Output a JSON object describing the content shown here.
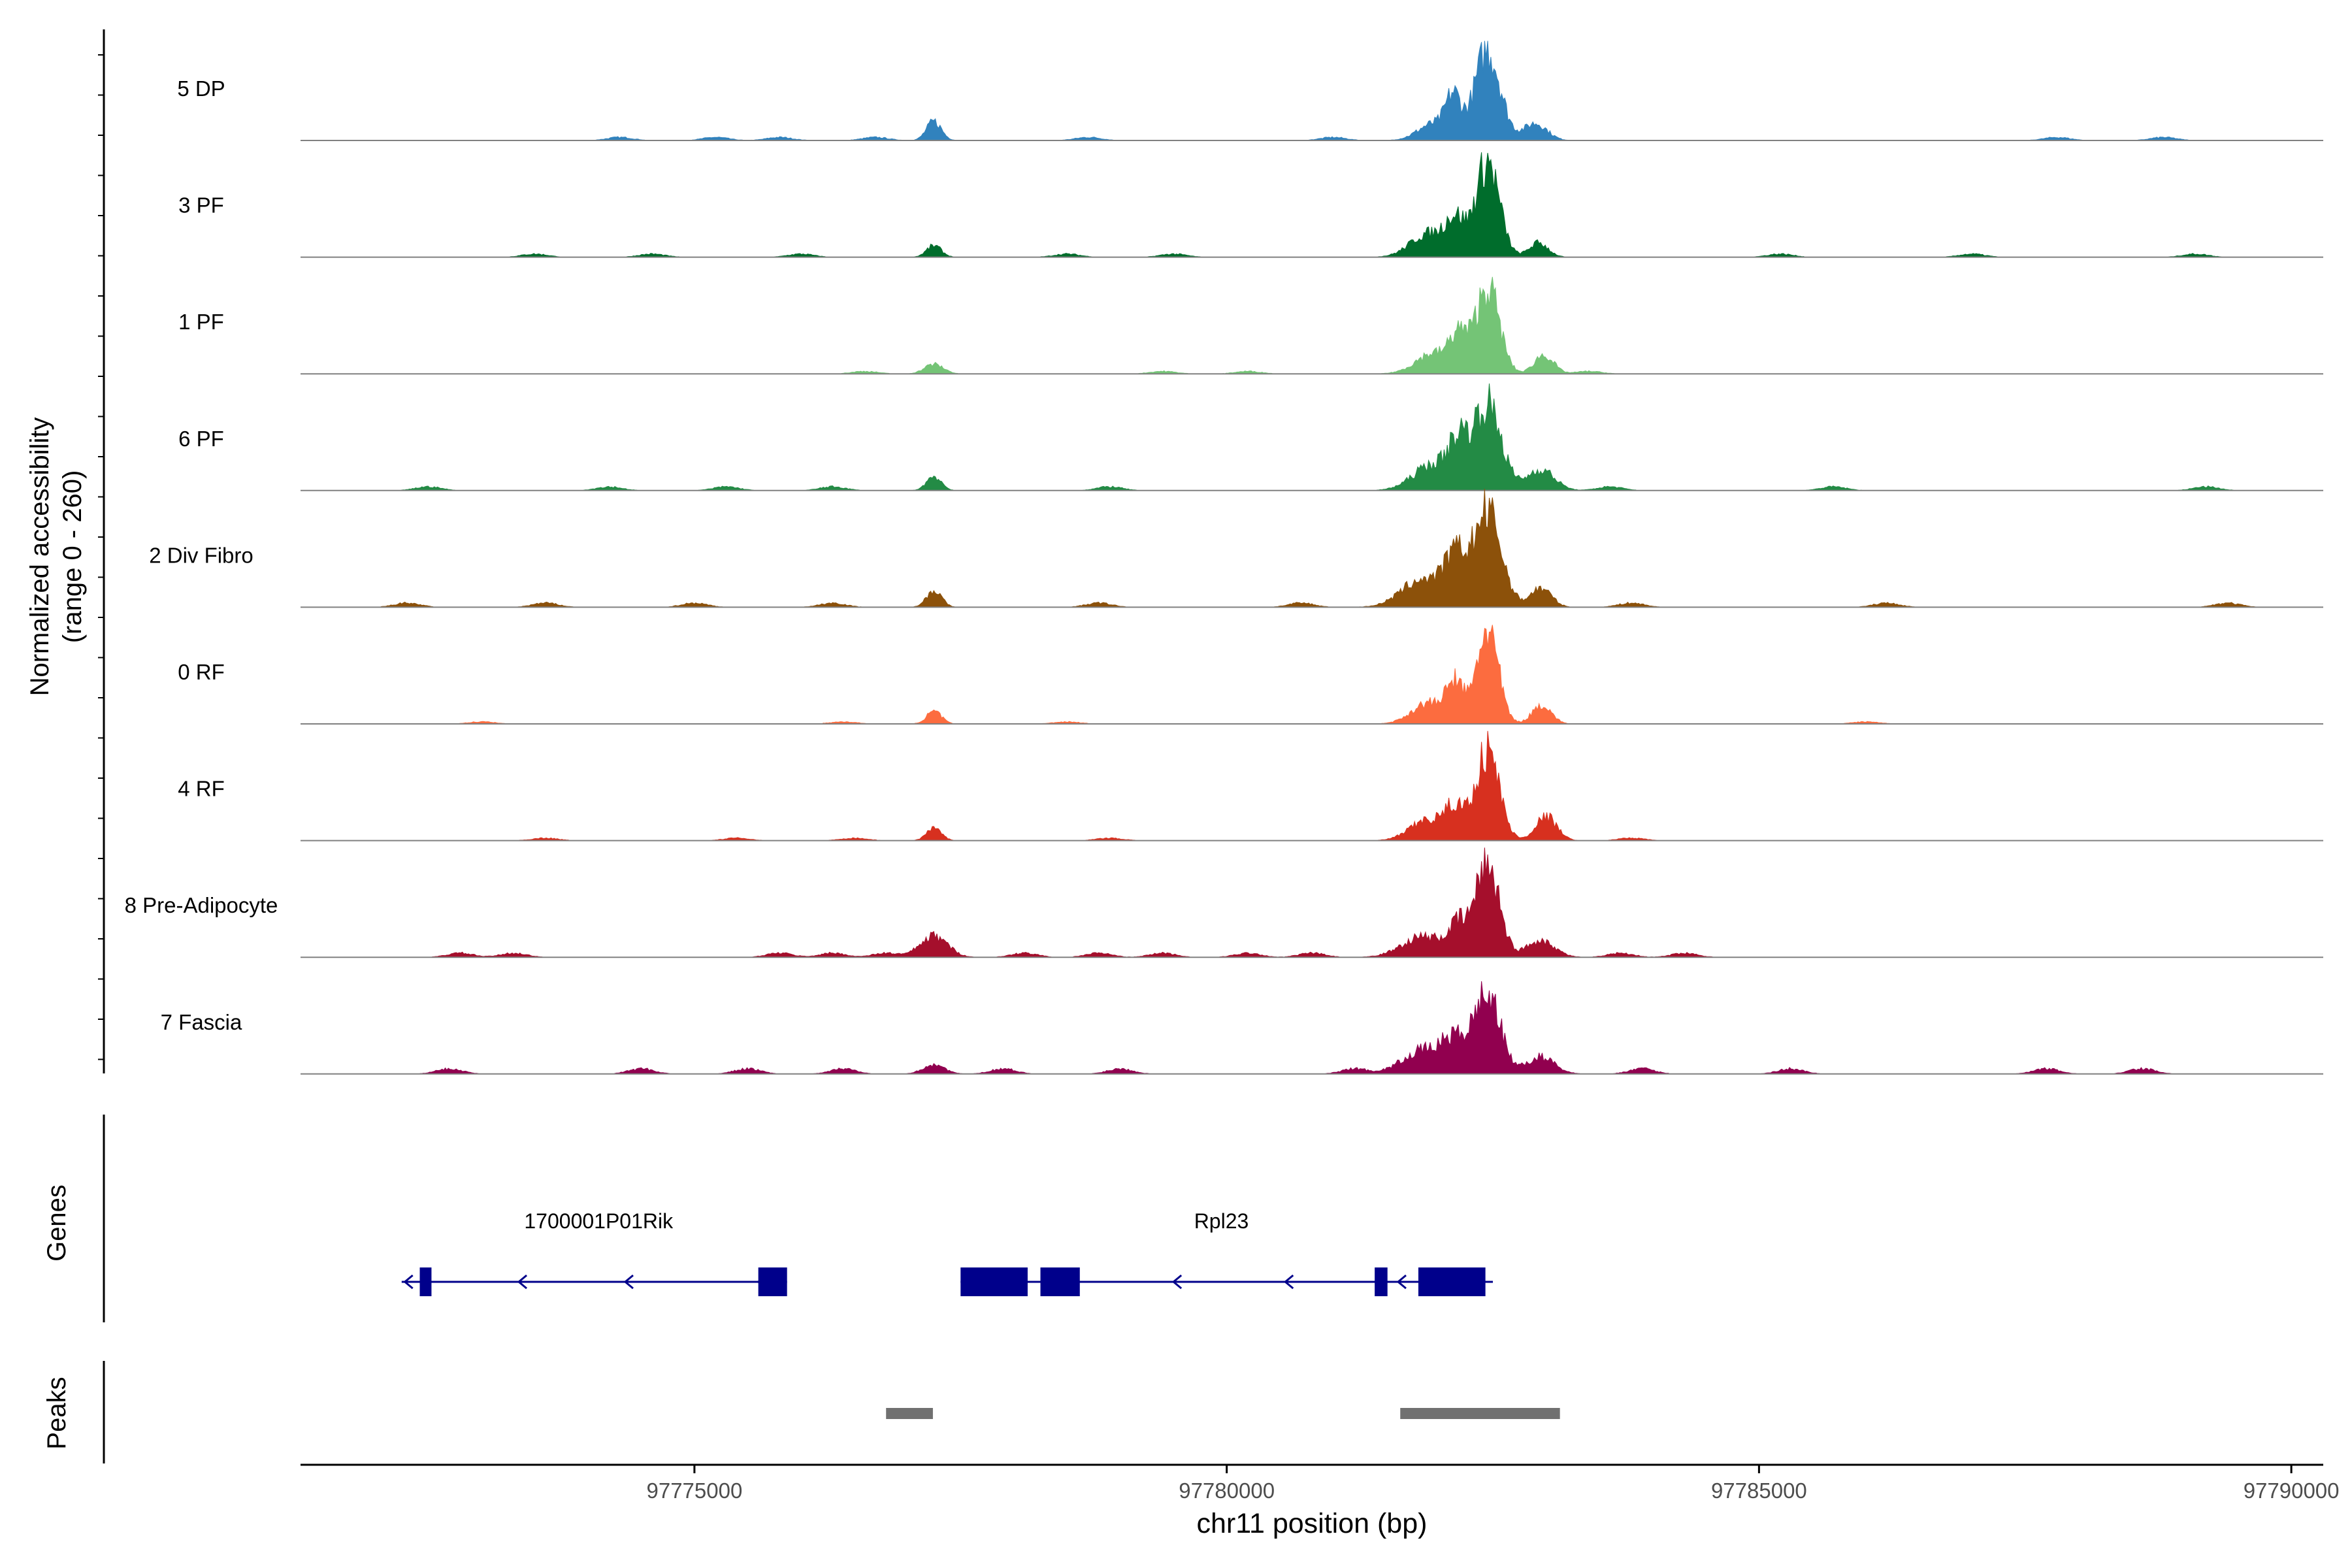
{
  "chart_data": {
    "type": "area",
    "title": "",
    "ylabel": "Normalized accessibility",
    "ylabel_range": "(range 0 - 260)",
    "xlabel": "chr11 position (bp)",
    "ylim": [
      0,
      260
    ],
    "xlim": [
      97771300,
      97790300
    ],
    "x_ticks": [
      97775000,
      97780000,
      97785000,
      97790000
    ],
    "x_tick_labels": [
      "97775000",
      "97780000",
      "97785000",
      "97790000"
    ],
    "peak_centers": {
      "main": 97782450,
      "minor": 97777250
    },
    "series": [
      {
        "name": "5 DP",
        "color": "#3182bd",
        "peaks": [
          [
            97782450,
            0.95,
            120
          ],
          [
            97782130,
            0.4,
            70
          ],
          [
            97781950,
            0.18,
            150
          ],
          [
            97782900,
            0.18,
            110
          ],
          [
            97777250,
            0.2,
            70
          ]
        ],
        "background": 0.015,
        "noise_spots": [
          97774300,
          97775200,
          97775800,
          97776700,
          97778700,
          97781000,
          97787800,
          97788800
        ]
      },
      {
        "name": "3 PF",
        "color": "#006d2c",
        "peaks": [
          [
            97782450,
            1.0,
            110
          ],
          [
            97782150,
            0.35,
            90
          ],
          [
            97781900,
            0.25,
            170
          ],
          [
            97782930,
            0.15,
            90
          ],
          [
            97777250,
            0.12,
            70
          ]
        ],
        "background": 0.015,
        "noise_spots": [
          97773500,
          97774600,
          97776000,
          97778500,
          97779500,
          97785200,
          97787000,
          97789100
        ]
      },
      {
        "name": "1 PF",
        "color": "#74c476",
        "peaks": [
          [
            97782450,
            0.92,
            110
          ],
          [
            97782180,
            0.35,
            80
          ],
          [
            97781950,
            0.22,
            170
          ],
          [
            97782980,
            0.2,
            90
          ],
          [
            97777250,
            0.1,
            90
          ]
        ],
        "background": 0.012,
        "noise_spots": [
          97776600,
          97779400,
          97780200,
          97783400
        ]
      },
      {
        "name": "6 PF",
        "color": "#238b45",
        "peaks": [
          [
            97782450,
            0.9,
            130
          ],
          [
            97782180,
            0.4,
            90
          ],
          [
            97781950,
            0.28,
            190
          ],
          [
            97782950,
            0.22,
            130
          ],
          [
            97777250,
            0.15,
            70
          ]
        ],
        "background": 0.018,
        "noise_spots": [
          97772500,
          97774200,
          97775300,
          97776300,
          97778900,
          97783600,
          97785700,
          97789200
        ]
      },
      {
        "name": "2 Div Fibro",
        "color": "#8c510a",
        "peaks": [
          [
            97782450,
            1.0,
            130
          ],
          [
            97782150,
            0.45,
            100
          ],
          [
            97781850,
            0.3,
            200
          ],
          [
            97782950,
            0.2,
            100
          ],
          [
            97777250,
            0.18,
            70
          ]
        ],
        "background": 0.02,
        "noise_spots": [
          97772300,
          97773600,
          97775000,
          97776300,
          97778800,
          97780700,
          97783800,
          97786200,
          97789400
        ]
      },
      {
        "name": "0 RF",
        "color": "#fc6c3f",
        "peaks": [
          [
            97782450,
            1.0,
            100
          ],
          [
            97782150,
            0.4,
            80
          ],
          [
            97781900,
            0.22,
            160
          ],
          [
            97782960,
            0.2,
            90
          ],
          [
            97777250,
            0.13,
            70
          ]
        ],
        "background": 0.01,
        "noise_spots": [
          97773000,
          97776400,
          97778500,
          97786000
        ]
      },
      {
        "name": "4 RF",
        "color": "#d7301f",
        "peaks": [
          [
            97782450,
            0.95,
            110
          ],
          [
            97782150,
            0.3,
            90
          ],
          [
            97781900,
            0.22,
            170
          ],
          [
            97783000,
            0.25,
            100
          ],
          [
            97777250,
            0.13,
            70
          ]
        ],
        "background": 0.012,
        "noise_spots": [
          97773600,
          97775400,
          97776500,
          97778900,
          97783800
        ]
      },
      {
        "name": "8 Pre-Adipocyte",
        "color": "#a50f2c",
        "peaks": [
          [
            97782450,
            1.0,
            110
          ],
          [
            97782180,
            0.3,
            90
          ],
          [
            97781850,
            0.22,
            200
          ],
          [
            97782950,
            0.18,
            130
          ],
          [
            97777250,
            0.22,
            130
          ]
        ],
        "background": 0.02,
        "noise_spots": [
          97772800,
          97773300,
          97775800,
          97776300,
          97776800,
          97778100,
          97778800,
          97779400,
          97780200,
          97780800,
          97783700,
          97784300
        ]
      },
      {
        "name": "7 Fascia",
        "color": "#91004f",
        "peaks": [
          [
            97782450,
            0.85,
            120
          ],
          [
            97782150,
            0.3,
            120
          ],
          [
            97781850,
            0.25,
            200
          ],
          [
            97782950,
            0.18,
            130
          ],
          [
            97777250,
            0.1,
            100
          ]
        ],
        "background": 0.025,
        "noise_spots": [
          97772700,
          97774500,
          97775500,
          97776400,
          97777900,
          97779000,
          97781200,
          97783900,
          97785300,
          97787700,
          97788600
        ]
      }
    ],
    "genes_track": {
      "label": "Genes",
      "color": "#00008b",
      "genes": [
        {
          "name": "1700001P01Rik",
          "label_x": 97774100,
          "strand": "-",
          "span": [
            97772250,
            97775870
          ],
          "exons": [
            [
              97772420,
              97772530
            ],
            [
              97775600,
              97775870
            ]
          ],
          "arrows": [
            97772280,
            97773350,
            97774350,
            97775600
          ]
        },
        {
          "name": "Rpl23",
          "label_x": 97779950,
          "strand": "-",
          "span": [
            97777500,
            97782500
          ],
          "exons": [
            [
              97777500,
              97778130
            ],
            [
              97778250,
              97778620
            ],
            [
              97781390,
              97781510
            ],
            [
              97781800,
              97782430
            ]
          ],
          "arrows": [
            97779500,
            97780550,
            97781610
          ]
        }
      ]
    },
    "peaks_track": {
      "label": "Peaks",
      "color": "#707070",
      "regions": [
        [
          97776800,
          97777240
        ],
        [
          97781630,
          97783130
        ]
      ]
    }
  }
}
